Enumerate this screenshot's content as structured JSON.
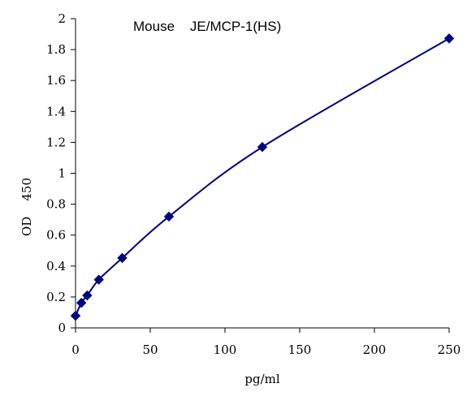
{
  "chart_data": {
    "type": "line",
    "title": "Mouse    JE/MCP-1(HS)",
    "xlabel": "pg/ml",
    "ylabel": "OD    450",
    "xlim": [
      0,
      250
    ],
    "ylim": [
      0,
      2
    ],
    "xticks": [
      "0",
      "50",
      "100",
      "150",
      "200",
      "250"
    ],
    "yticks": [
      "0",
      "0.2",
      "0.4",
      "0.6",
      "0.8",
      "1",
      "1.2",
      "1.4",
      "1.6",
      "1.8",
      "2"
    ],
    "grid": false,
    "legend": "none",
    "series": [
      {
        "x": [
          0,
          3.9,
          7.8,
          15.6,
          31.25,
          62.5,
          125,
          250
        ],
        "y": [
          0.078,
          0.162,
          0.21,
          0.312,
          0.452,
          0.72,
          1.17,
          1.872
        ],
        "marker": "diamond",
        "line": "smooth",
        "color": "#000080"
      }
    ]
  }
}
